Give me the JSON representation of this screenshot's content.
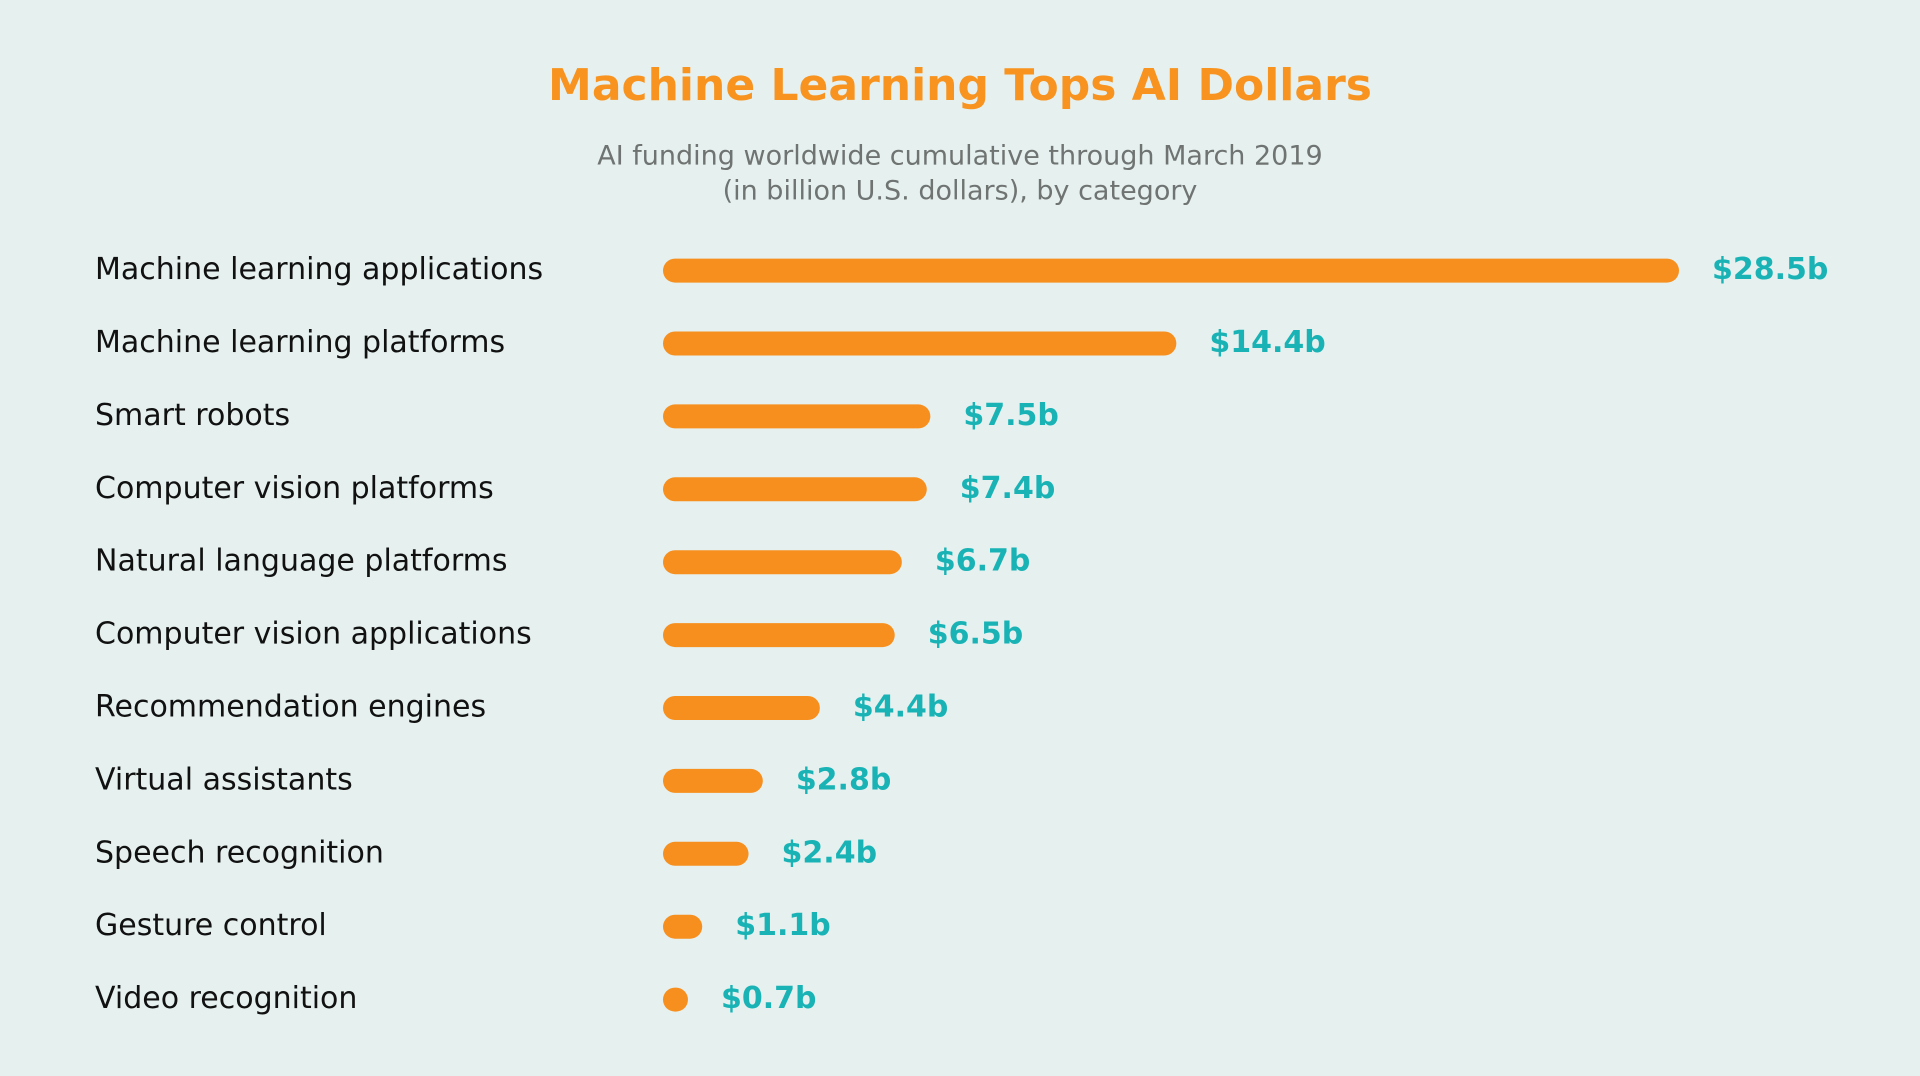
{
  "chart_data": {
    "type": "barh",
    "title": "Machine Learning Tops AI Dollars",
    "subtitle": [
      "AI funding worldwide cumulative through March 2019",
      "(in billion U.S. dollars), by category"
    ],
    "categories": [
      "Machine learning applications",
      "Machine learning platforms",
      "Smart robots",
      "Computer vision platforms",
      "Natural language platforms",
      "Computer vision applications",
      "Recommendation engines",
      "Virtual assistants",
      "Speech recognition",
      "Gesture control",
      "Video recognition"
    ],
    "values": [
      28.5,
      14.4,
      7.5,
      7.4,
      6.7,
      6.5,
      4.4,
      2.8,
      2.4,
      1.1,
      0.7
    ],
    "value_labels": [
      "$28.5b",
      "$14.4b",
      "$7.5b",
      "$7.4b",
      "$6.7b",
      "$6.5b",
      "$4.4b",
      "$2.8b",
      "$2.4b",
      "$1.1b",
      "$0.7b"
    ],
    "color": "#f78f1e",
    "label_color": "#1ab3b5"
  }
}
